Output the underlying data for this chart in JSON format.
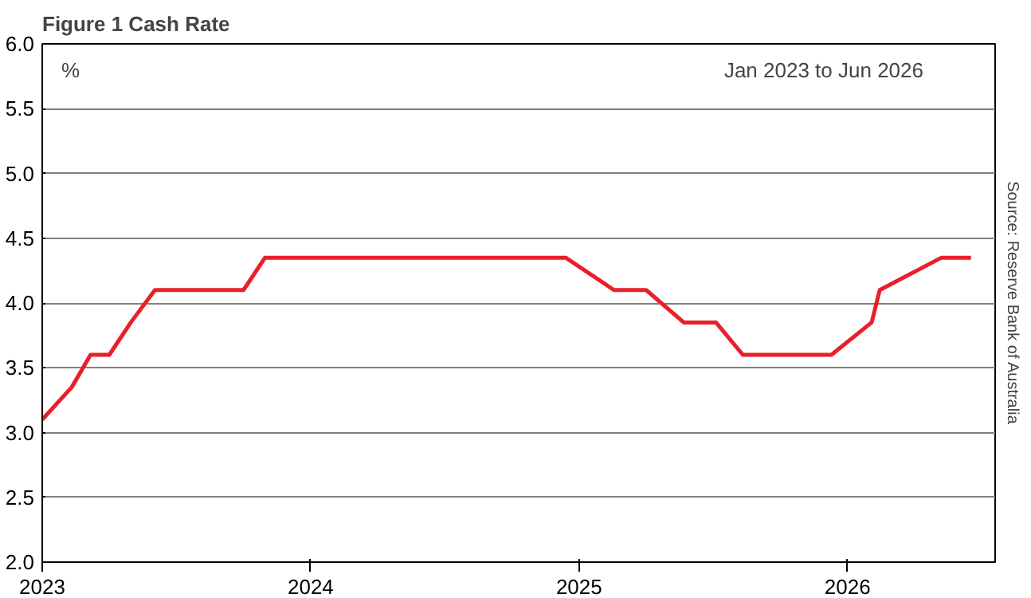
{
  "chart_data": {
    "type": "line",
    "title": "Figure 1 Cash Rate",
    "ylabel": "%",
    "annotations": [
      "Jan 2023 to Jun 2026",
      "Source: Reserve Bank of Australia"
    ],
    "x": [
      2023.0,
      2023.11,
      2023.18,
      2023.25,
      2023.33,
      2023.42,
      2023.75,
      2023.83,
      2024.95,
      2025.13,
      2025.25,
      2025.39,
      2025.51,
      2025.61,
      2025.94,
      2026.09,
      2026.12,
      2026.35,
      2026.46
    ],
    "series": [
      {
        "color": "#e8202a",
        "values": [
          3.1,
          3.35,
          3.6,
          3.6,
          3.85,
          4.1,
          4.1,
          4.35,
          4.35,
          4.1,
          4.1,
          3.85,
          3.85,
          3.6,
          3.6,
          3.85,
          4.1,
          4.35,
          4.35
        ]
      }
    ],
    "xlim": [
      2023,
      2026.55
    ],
    "xticks": [
      2023,
      2024,
      2025,
      2026
    ],
    "ylim": [
      2.0,
      6.0
    ],
    "yticks": [
      {
        "value": 2.0,
        "label": "2.0"
      },
      {
        "value": 2.5,
        "label": "2.5"
      },
      {
        "value": 3.0,
        "label": "3.0"
      },
      {
        "value": 3.5,
        "label": "3.5"
      },
      {
        "value": 4.0,
        "label": "4.0"
      },
      {
        "value": 4.5,
        "label": "4.5"
      },
      {
        "value": 5.0,
        "label": "5.0"
      },
      {
        "value": 5.5,
        "label": "5.5"
      },
      {
        "value": 6.0,
        "label": "6.0"
      }
    ],
    "grid": "y",
    "line_style": "solid"
  }
}
